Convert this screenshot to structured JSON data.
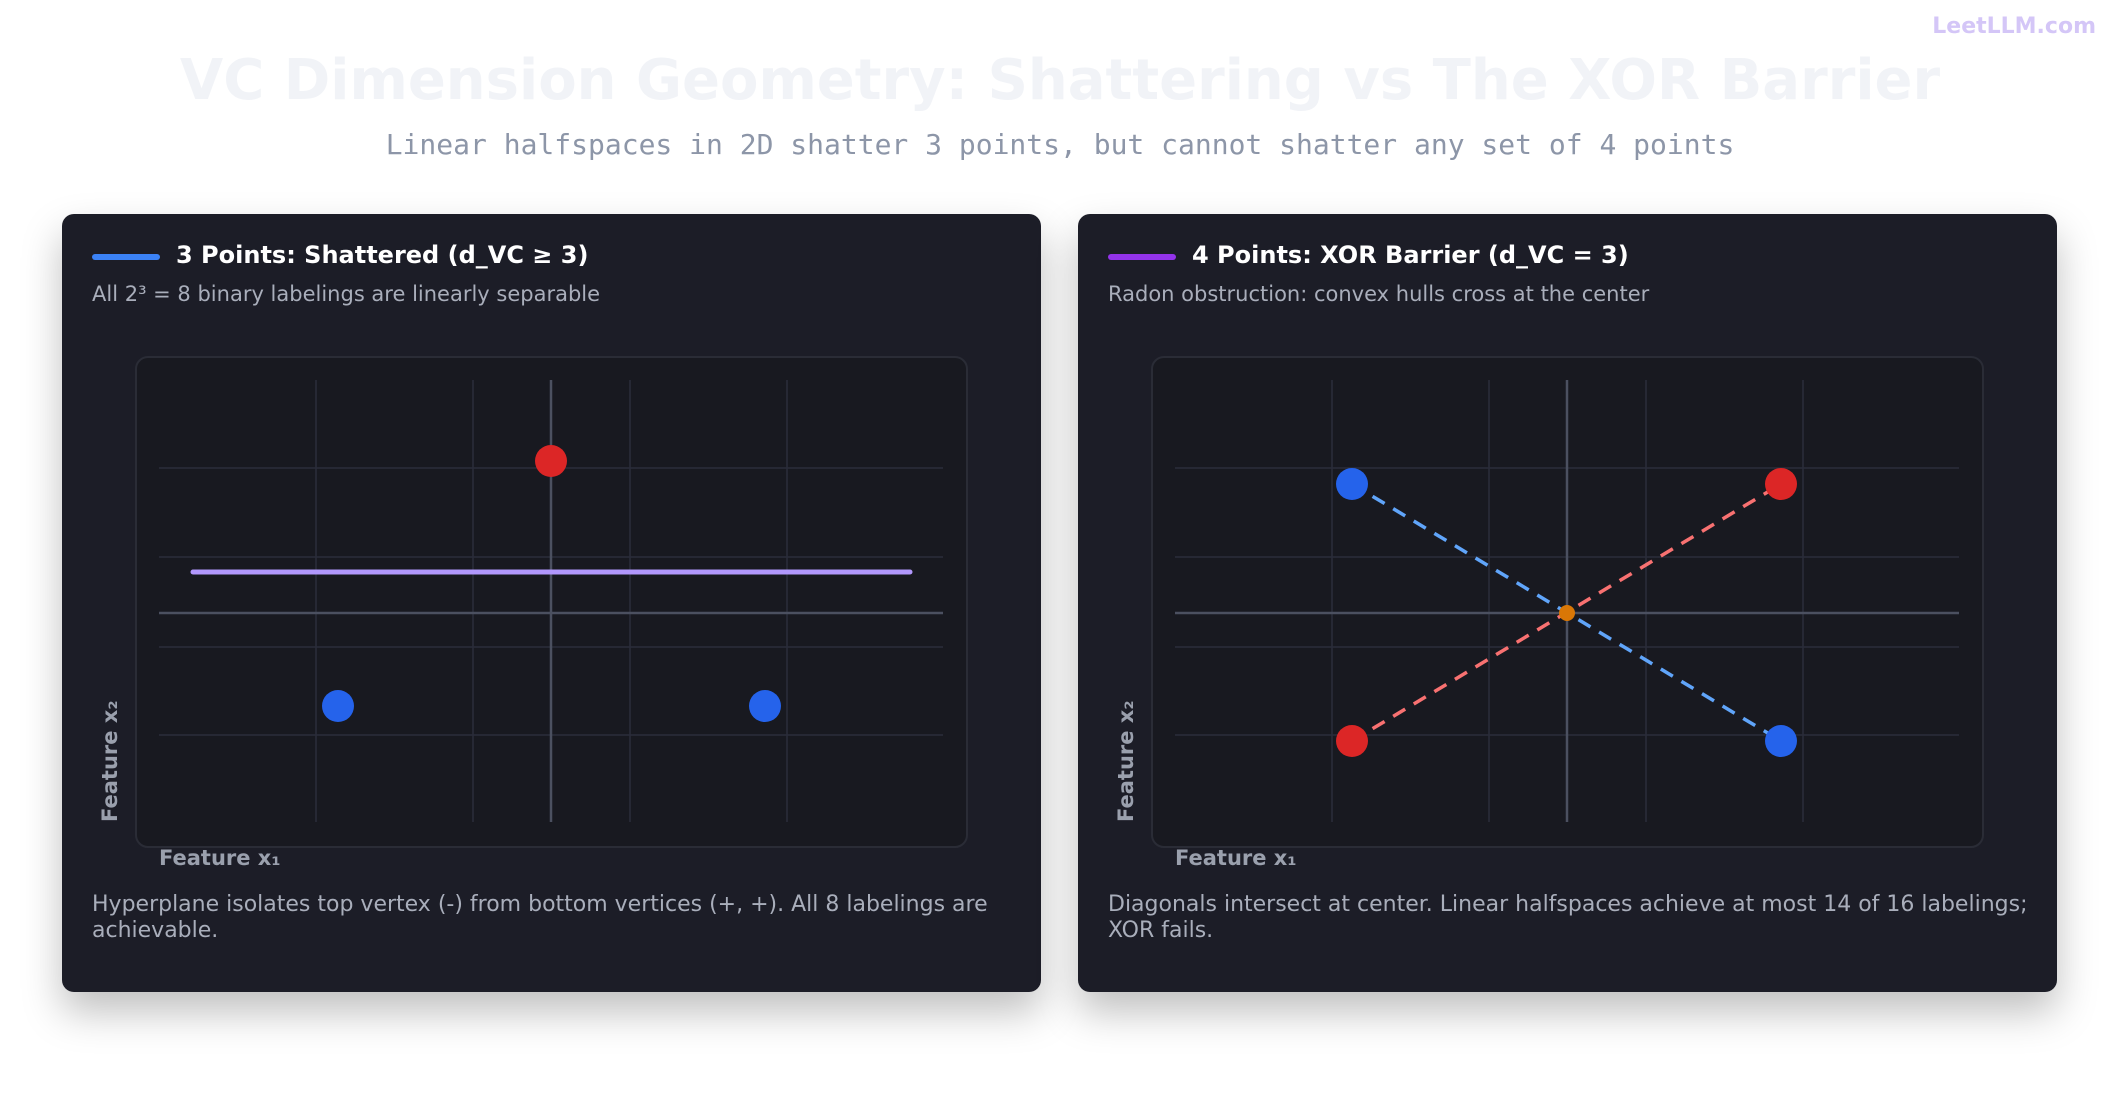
{
  "brand": "LeetLLM.com",
  "title": "VC Dimension Geometry: Shattering vs The XOR Barrier",
  "subtitle": "Linear halfspaces in 2D shatter 3 points, but cannot shatter any set of 4 points",
  "panels": [
    {
      "title": "3 Points: Shattered (d_VC ≥ 3)",
      "subtitle": "All 2³ = 8 binary labelings are linearly separable",
      "x_label": "Feature x₁",
      "y_label": "Feature x₂",
      "caption": "Hyperplane isolates top vertex (-) from bottom vertices (+, +). All 8 labelings are achievable."
    },
    {
      "title": "4 Points: XOR Barrier (d_VC = 3)",
      "subtitle": "Radon obstruction: convex hulls cross at the center",
      "x_label": "Feature x₁",
      "y_label": "Feature x₂",
      "caption": "Diagonals intersect at center. Linear halfspaces achieve at most 14 of 16 labelings; XOR fails."
    }
  ]
}
